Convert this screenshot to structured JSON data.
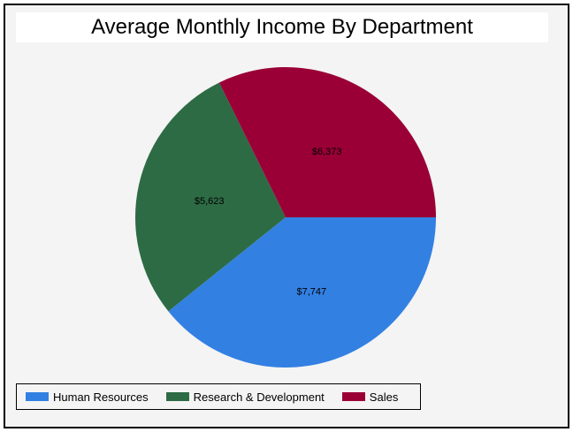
{
  "chart_data": {
    "type": "pie",
    "title": "Average Monthly Income By Department",
    "categories": [
      "Human Resources",
      "Research & Development",
      "Sales"
    ],
    "values": [
      7747,
      5623,
      6373
    ],
    "value_labels": [
      "$7,747",
      "$5,623",
      "$6,373"
    ],
    "colors": [
      "#3380e3",
      "#2d6b45",
      "#9a0036"
    ],
    "legend_position": "bottom"
  },
  "title": "Average Monthly Income By Department",
  "legend": [
    {
      "label": "Human Resources",
      "color": "#3380e3"
    },
    {
      "label": "Research & Development",
      "color": "#2d6b45"
    },
    {
      "label": "Sales",
      "color": "#9a0036"
    }
  ]
}
